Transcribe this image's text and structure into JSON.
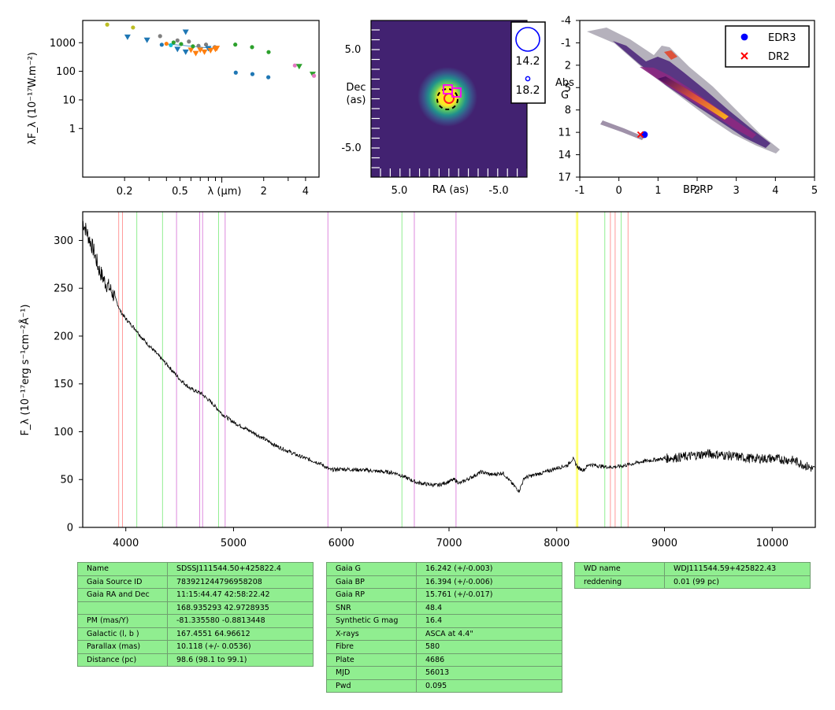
{
  "sed": {
    "ylabel": "λF_λ (10⁻¹⁷W.m⁻²)",
    "xlabel": "λ (μm)",
    "xticks": [
      "0.2",
      "0.5",
      "2",
      "4"
    ],
    "xtick_values": [
      0.2,
      0.5,
      2,
      4
    ],
    "yticks": [
      "1000",
      "100",
      "10",
      "1"
    ],
    "ytick_values": [
      1000,
      100,
      10,
      1
    ],
    "x_range": [
      0.1,
      5
    ],
    "y_range": [
      0.02,
      6000
    ],
    "points": [
      {
        "x": 0.15,
        "y": 4300,
        "color": "#bcbd22",
        "marker": "dot"
      },
      {
        "x": 0.23,
        "y": 3400,
        "color": "#bcbd22",
        "marker": "dot"
      },
      {
        "x": 0.21,
        "y": 1600,
        "color": "#1f77b4",
        "marker": "tri"
      },
      {
        "x": 0.29,
        "y": 1250,
        "color": "#1f77b4",
        "marker": "tri"
      },
      {
        "x": 0.36,
        "y": 1700,
        "color": "#7f7f7f",
        "marker": "dot"
      },
      {
        "x": 0.37,
        "y": 850,
        "color": "#1f77b4",
        "marker": "dot"
      },
      {
        "x": 0.4,
        "y": 920,
        "color": "#ff7f0e",
        "marker": "dot"
      },
      {
        "x": 0.43,
        "y": 820,
        "color": "#17becf",
        "marker": "dot"
      },
      {
        "x": 0.45,
        "y": 1020,
        "color": "#2ca02c",
        "marker": "dot"
      },
      {
        "x": 0.48,
        "y": 1200,
        "color": "#7f7f7f",
        "marker": "dot"
      },
      {
        "x": 0.48,
        "y": 600,
        "color": "#1f77b4",
        "marker": "tri"
      },
      {
        "x": 0.51,
        "y": 900,
        "color": "#2ca02c",
        "marker": "dot"
      },
      {
        "x": 0.55,
        "y": 2400,
        "color": "#1f77b4",
        "marker": "tri"
      },
      {
        "x": 0.55,
        "y": 480,
        "color": "#1f77b4",
        "marker": "tri"
      },
      {
        "x": 0.58,
        "y": 1100,
        "color": "#7f7f7f",
        "marker": "dot"
      },
      {
        "x": 0.6,
        "y": 560,
        "color": "#ff7f0e",
        "marker": "tri"
      },
      {
        "x": 0.62,
        "y": 750,
        "color": "#2ca02c",
        "marker": "dot"
      },
      {
        "x": 0.65,
        "y": 430,
        "color": "#ff7f0e",
        "marker": "tri"
      },
      {
        "x": 0.68,
        "y": 780,
        "color": "#7f7f7f",
        "marker": "dot"
      },
      {
        "x": 0.7,
        "y": 560,
        "color": "#ff7f0e",
        "marker": "tri"
      },
      {
        "x": 0.75,
        "y": 480,
        "color": "#ff7f0e",
        "marker": "tri"
      },
      {
        "x": 0.77,
        "y": 860,
        "color": "#7f7f7f",
        "marker": "dot"
      },
      {
        "x": 0.8,
        "y": 640,
        "color": "#1f77b4",
        "marker": "tri"
      },
      {
        "x": 0.83,
        "y": 540,
        "color": "#ff7f0e",
        "marker": "tri"
      },
      {
        "x": 0.89,
        "y": 700,
        "color": "#7f7f7f",
        "marker": "dot"
      },
      {
        "x": 0.9,
        "y": 600,
        "color": "#ff7f0e",
        "marker": "tri"
      },
      {
        "x": 0.92,
        "y": 650,
        "color": "#ff7f0e",
        "marker": "tri"
      },
      {
        "x": 1.25,
        "y": 860,
        "color": "#2ca02c",
        "marker": "dot"
      },
      {
        "x": 1.26,
        "y": 90,
        "color": "#1f77b4",
        "marker": "dot"
      },
      {
        "x": 1.65,
        "y": 700,
        "color": "#2ca02c",
        "marker": "dot"
      },
      {
        "x": 1.66,
        "y": 80,
        "color": "#1f77b4",
        "marker": "dot"
      },
      {
        "x": 2.17,
        "y": 470,
        "color": "#2ca02c",
        "marker": "dot"
      },
      {
        "x": 2.16,
        "y": 62,
        "color": "#1f77b4",
        "marker": "dot"
      },
      {
        "x": 3.35,
        "y": 160,
        "color": "#e377c2",
        "marker": "dot"
      },
      {
        "x": 3.6,
        "y": 150,
        "color": "#2ca02c",
        "marker": "tri"
      },
      {
        "x": 4.5,
        "y": 80,
        "color": "#2ca02c",
        "marker": "tri"
      },
      {
        "x": 4.6,
        "y": 70,
        "color": "#e377c2",
        "marker": "dot"
      }
    ]
  },
  "image": {
    "ylabel_line1": "Dec",
    "ylabel_line2": "(as)",
    "xlabel": "RA (as)",
    "yticks": [
      "5.0",
      "-5.0"
    ],
    "xticks": [
      "5.0",
      "-5.0"
    ],
    "legend": [
      "14.2",
      "18.2"
    ]
  },
  "hrd": {
    "ylabel_line1": "Abs",
    "ylabel_line2": "G",
    "xlabel": "BP-RP",
    "yticks": [
      "-4",
      "-1",
      "2",
      "5",
      "8",
      "11",
      "14",
      "17"
    ],
    "xticks": [
      "-1",
      "0",
      "1",
      "2",
      "3",
      "4",
      "5"
    ],
    "legend": [
      {
        "label": "EDR3",
        "color": "#0000ff",
        "marker": "dot"
      },
      {
        "label": "DR2",
        "color": "#ff0000",
        "marker": "cross"
      }
    ],
    "edr3": {
      "x": 0.65,
      "y": 11.3
    },
    "dr2": {
      "x": 0.55,
      "y": 11.3
    }
  },
  "chart_data": {
    "type": "line",
    "ylabel": "F_λ (10⁻¹⁷erg s⁻¹cm⁻²Å⁻¹)",
    "xlim": [
      3600,
      10400
    ],
    "ylim": [
      0,
      330
    ],
    "xticks": [
      "4000",
      "5000",
      "6000",
      "7000",
      "8000",
      "9000",
      "10000"
    ],
    "yticks": [
      "0",
      "50",
      "100",
      "150",
      "200",
      "250",
      "300"
    ],
    "x": [
      3600,
      3650,
      3700,
      3750,
      3800,
      3850,
      3900,
      3950,
      4000,
      4050,
      4100,
      4150,
      4200,
      4300,
      4400,
      4500,
      4600,
      4700,
      4800,
      4900,
      5000,
      5200,
      5400,
      5600,
      5800,
      5900,
      6000,
      6200,
      6400,
      6500,
      6600,
      6700,
      6800,
      6900,
      7000,
      7050,
      7100,
      7200,
      7300,
      7400,
      7500,
      7600,
      7650,
      7700,
      7800,
      7900,
      8000,
      8100,
      8150,
      8200,
      8250,
      8300,
      8400,
      8500,
      8600,
      8800,
      9000,
      9200,
      9400,
      9600,
      9800,
      10000,
      10200,
      10400
    ],
    "y": [
      320,
      305,
      290,
      270,
      258,
      250,
      240,
      226,
      218,
      212,
      206,
      198,
      192,
      180,
      168,
      155,
      145,
      140,
      130,
      118,
      110,
      98,
      85,
      75,
      67,
      60,
      61,
      60,
      58,
      57,
      52,
      47,
      45,
      44,
      48,
      50,
      46,
      52,
      58,
      55,
      57,
      44,
      38,
      52,
      55,
      58,
      62,
      65,
      72,
      62,
      60,
      66,
      64,
      63,
      64,
      69,
      72,
      74,
      77,
      75,
      72,
      72,
      70,
      60
    ],
    "lines": [
      {
        "x": 3934,
        "color": "#ff9999"
      },
      {
        "x": 3969,
        "color": "#ff9999"
      },
      {
        "x": 4102,
        "color": "#90ee90"
      },
      {
        "x": 4341,
        "color": "#90ee90"
      },
      {
        "x": 4471,
        "color": "#dd88dd"
      },
      {
        "x": 4686,
        "color": "#dd88dd"
      },
      {
        "x": 4713,
        "color": "#dd88dd"
      },
      {
        "x": 4861,
        "color": "#90ee90"
      },
      {
        "x": 4922,
        "color": "#dd88dd"
      },
      {
        "x": 5876,
        "color": "#dd88dd"
      },
      {
        "x": 6563,
        "color": "#90ee90"
      },
      {
        "x": 6678,
        "color": "#dd88dd"
      },
      {
        "x": 7065,
        "color": "#dd88dd"
      },
      {
        "x": 8183,
        "color": "#ffff33"
      },
      {
        "x": 8195,
        "color": "#ffff33"
      },
      {
        "x": 8446,
        "color": "#90ee90"
      },
      {
        "x": 8498,
        "color": "#ff9999"
      },
      {
        "x": 8542,
        "color": "#ff9999"
      },
      {
        "x": 8598,
        "color": "#90ee90"
      },
      {
        "x": 8662,
        "color": "#ff9999"
      }
    ]
  },
  "tables": {
    "t1": [
      [
        "Name",
        "SDSSJ111544.50+425822.4"
      ],
      [
        "Gaia Source ID",
        "783921244796958208"
      ],
      [
        "Gaia RA and Dec",
        "11:15:44.47    42:58:22.42"
      ],
      [
        "",
        "168.935293    42.9728935"
      ],
      [
        "PM (mas/Y)",
        "-81.335580    -0.8813448"
      ],
      [
        "Galactic (l, b )",
        "167.4551    64.96612"
      ],
      [
        "Parallax (mas)",
        "10.118 (+/- 0.0536)"
      ],
      [
        "Distance (pc)",
        "98.6 (98.1 to 99.1)"
      ]
    ],
    "t2": [
      [
        "Gaia G",
        "16.242 (+/-0.003)"
      ],
      [
        "Gaia BP",
        "16.394 (+/-0.006)"
      ],
      [
        "Gaia RP",
        "15.761 (+/-0.017)"
      ],
      [
        "SNR",
        "48.4"
      ],
      [
        "Synthetic G mag",
        "16.4"
      ],
      [
        "X-rays",
        "ASCA at 4.4\""
      ],
      [
        "Fibre",
        "580"
      ],
      [
        "Plate",
        "4686"
      ],
      [
        "MJD",
        "56013"
      ],
      [
        "Pwd",
        "0.095"
      ]
    ],
    "t3": [
      [
        "WD name",
        "WDJ111544.59+425822.43"
      ],
      [
        "reddening",
        "0.01 (99 pc)"
      ]
    ]
  }
}
